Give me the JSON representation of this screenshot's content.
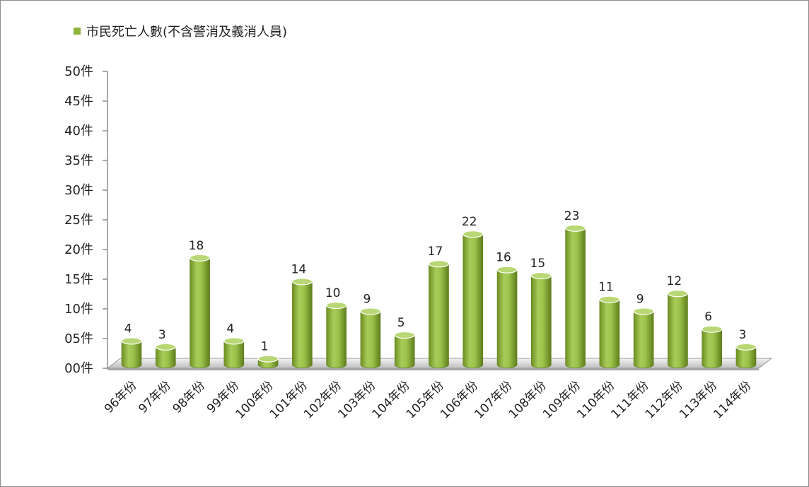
{
  "chart_data": {
    "type": "bar",
    "title": "",
    "xlabel": "",
    "ylabel": "",
    "ylim": [
      0,
      50
    ],
    "yticks": [
      "00件",
      "05件",
      "10件",
      "15件",
      "20件",
      "25件",
      "30件",
      "35件",
      "40件",
      "45件",
      "50件"
    ],
    "categories": [
      "96年份",
      "97年份",
      "98年份",
      "99年份",
      "100年份",
      "101年份",
      "102年份",
      "103年份",
      "104年份",
      "105年份",
      "106年份",
      "107年份",
      "108年份",
      "109年份",
      "110年份",
      "111年份",
      "112年份",
      "113年份",
      "114年份"
    ],
    "series": [
      {
        "name": "市民死亡人數(不含警消及義消人員)",
        "color": "#8fb43c",
        "values": [
          4,
          3,
          18,
          4,
          1,
          14,
          10,
          9,
          5,
          17,
          22,
          16,
          15,
          23,
          11,
          9,
          12,
          6,
          3
        ]
      }
    ],
    "legend_position": "top-left",
    "grid": false
  }
}
